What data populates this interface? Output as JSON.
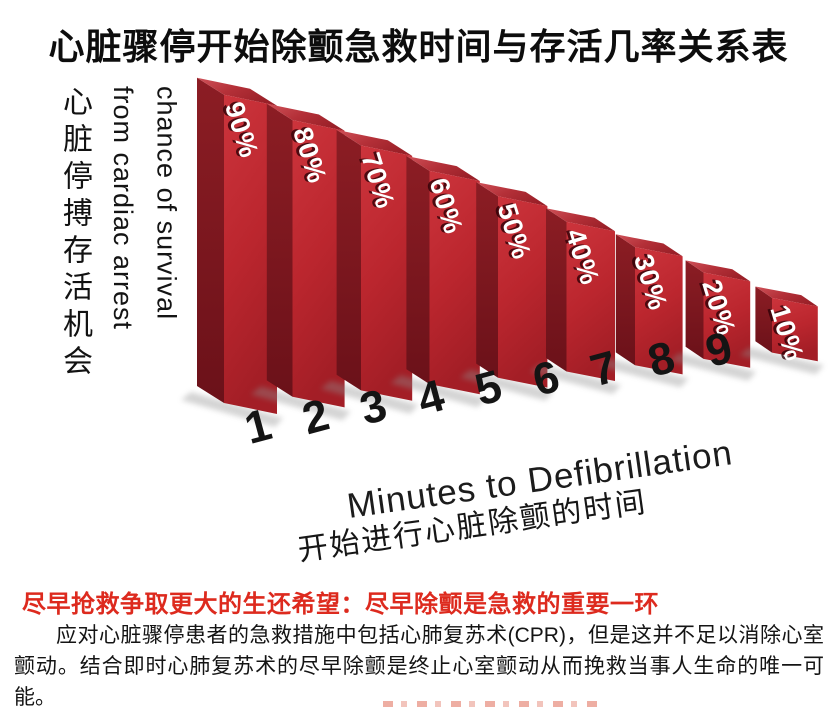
{
  "page_title": "心脏骤停开始除颤急救时间与存活几率关系表",
  "chart_data": {
    "type": "bar",
    "style": "3d-red-columns",
    "title": "心脏骤停开始除颤急救时间与存活几率关系表",
    "categories": [
      "1",
      "2",
      "3",
      "4",
      "5",
      "6",
      "7",
      "8",
      "9"
    ],
    "values": [
      90,
      80,
      70,
      60,
      50,
      40,
      30,
      20,
      10
    ],
    "bar_labels": [
      "90%",
      "80%",
      "70%",
      "60%",
      "50%",
      "40%",
      "30%",
      "20%",
      "10%"
    ],
    "xlabel": "Minutes to Defibrillation",
    "xlabel_zh": "开始进行心脏除颤的时间",
    "ylabel": "chance of survival from cardiac arrest",
    "ylabel_en_line1": "chance of survival",
    "ylabel_en_line2": "from cardiac arrest",
    "ylabel_zh": "心脏停搏存活机会",
    "ylim": [
      0,
      100
    ],
    "grid": false,
    "legend": false,
    "colors": {
      "bar_front": "#bf2830",
      "bar_side": "#7d161d",
      "bar_top": "#a8262e",
      "bar_label_text": "#ffffff",
      "tick_text": "#141414"
    }
  },
  "footer": {
    "headline": "尽早抢救争取更大的生还希望：尽早除颤是急救的重要一环",
    "headline_color": "#dd2a1e",
    "body": "应对心脏骤停患者的急救措施中包括心肺复苏术(CPR)，但是这并不足以消除心室颤动。结合即时心肺复苏术的尽早除颤是终止心室颤动从而挽救当事人生命的唯一可能。"
  }
}
